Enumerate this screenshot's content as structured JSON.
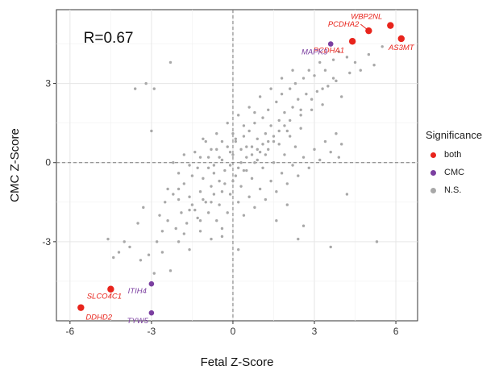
{
  "chart_data": {
    "type": "scatter",
    "xlabel": "Fetal Z-Score",
    "ylabel": "CMC Z-Score",
    "xlim": [
      -6.5,
      6.8
    ],
    "ylim": [
      -6.0,
      5.8
    ],
    "xticks": [
      -6,
      -3,
      0,
      3,
      6
    ],
    "yticks": [
      -3,
      0,
      3
    ],
    "grid": true,
    "reference_lines": {
      "x": 0,
      "y": 0
    },
    "annotation": "R=0.67",
    "legend": {
      "title": "Significance",
      "placement": "right",
      "entries": [
        {
          "label": "both",
          "color": "#e8241c"
        },
        {
          "label": "CMC",
          "color": "#7b3fa0"
        },
        {
          "label": "N.S.",
          "color": "#a8a8a8"
        }
      ]
    },
    "series": [
      {
        "name": "both",
        "color": "#e8241c",
        "points": [
          {
            "x": 5.8,
            "y": 5.2,
            "label": "WBP2NL"
          },
          {
            "x": 5.0,
            "y": 5.0,
            "label": "PCDHA2"
          },
          {
            "x": 4.4,
            "y": 4.6,
            "label": "PCDHA1"
          },
          {
            "x": 6.2,
            "y": 4.7,
            "label": "AS3MT"
          },
          {
            "x": -4.5,
            "y": -4.8,
            "label": "SLCO4C1"
          },
          {
            "x": -5.6,
            "y": -5.5,
            "label": "DDHD2"
          }
        ]
      },
      {
        "name": "CMC",
        "color": "#7b3fa0",
        "points": [
          {
            "x": 3.6,
            "y": 4.5,
            "label": "MAPK3"
          },
          {
            "x": -3.0,
            "y": -4.6,
            "label": "ITIH4"
          },
          {
            "x": -3.0,
            "y": -5.7,
            "label": "TYW5"
          }
        ]
      },
      {
        "name": "N.S.",
        "color": "#a8a8a8",
        "points": [
          [
            -2.3,
            3.8
          ],
          [
            -3.6,
            2.8
          ],
          [
            -3.2,
            3.0
          ],
          [
            -2.9,
            2.8
          ],
          [
            -3.0,
            1.2
          ],
          [
            -3.3,
            -1.7
          ],
          [
            -2.7,
            -2.0
          ],
          [
            -2.5,
            -1.5
          ],
          [
            -2.2,
            -1.2
          ],
          [
            -2.0,
            -1.0
          ],
          [
            -1.8,
            -0.8
          ],
          [
            -1.6,
            -1.3
          ],
          [
            -1.5,
            -0.5
          ],
          [
            -1.4,
            -1.8
          ],
          [
            -1.3,
            -0.2
          ],
          [
            -1.2,
            -1.1
          ],
          [
            -1.1,
            -0.6
          ],
          [
            -1.0,
            -1.5
          ],
          [
            -0.9,
            0.2
          ],
          [
            -0.8,
            -0.9
          ],
          [
            -0.7,
            -0.4
          ],
          [
            -0.6,
            0.5
          ],
          [
            -0.5,
            -0.7
          ],
          [
            -0.4,
            0.1
          ],
          [
            -0.3,
            -0.3
          ],
          [
            -0.2,
            0.6
          ],
          [
            -0.1,
            -0.1
          ],
          [
            0.0,
            0.3
          ],
          [
            0.1,
            0.8
          ],
          [
            0.2,
            -0.2
          ],
          [
            0.3,
            0.5
          ],
          [
            0.4,
            1.0
          ],
          [
            0.5,
            0.2
          ],
          [
            0.6,
            1.2
          ],
          [
            0.7,
            0.6
          ],
          [
            0.8,
            1.5
          ],
          [
            0.9,
            0.9
          ],
          [
            1.0,
            0.4
          ],
          [
            1.1,
            1.7
          ],
          [
            1.2,
            1.1
          ],
          [
            1.3,
            2.0
          ],
          [
            1.4,
            1.4
          ],
          [
            1.5,
            0.8
          ],
          [
            1.6,
            2.3
          ],
          [
            1.7,
            1.6
          ],
          [
            1.8,
            2.6
          ],
          [
            1.9,
            1.9
          ],
          [
            2.0,
            1.2
          ],
          [
            2.1,
            2.8
          ],
          [
            2.2,
            2.1
          ],
          [
            2.3,
            3.0
          ],
          [
            2.4,
            2.4
          ],
          [
            2.5,
            1.8
          ],
          [
            2.6,
            3.2
          ],
          [
            2.7,
            2.6
          ],
          [
            2.8,
            3.5
          ],
          [
            2.9,
            2.0
          ],
          [
            3.0,
            3.3
          ],
          [
            3.1,
            2.7
          ],
          [
            3.2,
            3.8
          ],
          [
            3.3,
            2.2
          ],
          [
            3.4,
            3.5
          ],
          [
            3.5,
            2.9
          ],
          [
            3.7,
            3.9
          ],
          [
            3.8,
            3.1
          ],
          [
            3.9,
            4.2
          ],
          [
            4.0,
            2.5
          ],
          [
            4.2,
            4.0
          ],
          [
            4.3,
            3.4
          ],
          [
            4.5,
            3.8
          ],
          [
            4.7,
            3.5
          ],
          [
            5.0,
            4.1
          ],
          [
            5.2,
            3.7
          ],
          [
            5.5,
            4.4
          ],
          [
            -2.6,
            -2.6
          ],
          [
            -2.4,
            -2.2
          ],
          [
            -2.1,
            -2.5
          ],
          [
            -1.9,
            -1.9
          ],
          [
            -1.7,
            -2.3
          ],
          [
            -1.5,
            -1.6
          ],
          [
            -1.3,
            -2.1
          ],
          [
            -1.1,
            -1.4
          ],
          [
            -0.9,
            -1.9
          ],
          [
            -0.7,
            -1.2
          ],
          [
            -0.5,
            -1.6
          ],
          [
            -0.3,
            -0.8
          ],
          [
            -0.1,
            -1.2
          ],
          [
            0.1,
            -0.5
          ],
          [
            0.3,
            -0.9
          ],
          [
            0.5,
            -0.3
          ],
          [
            0.7,
            -0.6
          ],
          [
            0.9,
            0.1
          ],
          [
            1.1,
            -0.2
          ],
          [
            1.3,
            0.5
          ],
          [
            1.5,
            0.0
          ],
          [
            1.7,
            0.7
          ],
          [
            1.9,
            0.3
          ],
          [
            2.1,
            1.0
          ],
          [
            2.3,
            0.6
          ],
          [
            2.5,
            1.3
          ],
          [
            -2.8,
            -3.0
          ],
          [
            -3.5,
            -2.3
          ],
          [
            -3.8,
            -3.2
          ],
          [
            -4.2,
            -3.4
          ],
          [
            -4.4,
            -3.6
          ],
          [
            -4.6,
            -2.9
          ],
          [
            -4.0,
            -3.0
          ],
          [
            -3.4,
            -3.7
          ],
          [
            -3.1,
            -3.5
          ],
          [
            -2.9,
            -4.2
          ],
          [
            -2.6,
            -3.4
          ],
          [
            -2.3,
            -4.1
          ],
          [
            -2.0,
            -3.0
          ],
          [
            -1.8,
            -2.7
          ],
          [
            -1.6,
            -3.3
          ],
          [
            -1.2,
            -2.6
          ],
          [
            -0.8,
            -2.9
          ],
          [
            -0.6,
            -2.2
          ],
          [
            -0.4,
            -2.5
          ],
          [
            -0.2,
            -1.9
          ],
          [
            0.2,
            -1.5
          ],
          [
            0.4,
            -2.0
          ],
          [
            0.6,
            -1.3
          ],
          [
            0.8,
            -1.7
          ],
          [
            1.0,
            -1.0
          ],
          [
            1.2,
            -1.4
          ],
          [
            1.4,
            -0.7
          ],
          [
            1.6,
            -1.1
          ],
          [
            1.8,
            -0.4
          ],
          [
            2.0,
            -0.8
          ],
          [
            2.2,
            -0.1
          ],
          [
            2.4,
            -0.5
          ],
          [
            2.6,
            0.2
          ],
          [
            2.8,
            -0.2
          ],
          [
            3.0,
            0.5
          ],
          [
            3.2,
            0.1
          ],
          [
            3.4,
            0.8
          ],
          [
            3.6,
            0.4
          ],
          [
            3.8,
            1.1
          ],
          [
            4.0,
            0.7
          ],
          [
            -1.4,
            0.4
          ],
          [
            -1.0,
            0.8
          ],
          [
            -0.6,
            1.1
          ],
          [
            -0.2,
            1.5
          ],
          [
            0.2,
            1.8
          ],
          [
            0.6,
            2.1
          ],
          [
            1.0,
            2.5
          ],
          [
            1.4,
            2.8
          ],
          [
            1.8,
            3.2
          ],
          [
            2.2,
            3.5
          ],
          [
            -2.2,
            0.0
          ],
          [
            -1.8,
            0.3
          ],
          [
            -2.0,
            -0.4
          ],
          [
            -1.6,
            -0.1
          ],
          [
            -1.2,
            0.2
          ],
          [
            -0.8,
            0.5
          ],
          [
            -0.4,
            0.8
          ],
          [
            0.0,
            1.1
          ],
          [
            0.4,
            1.4
          ],
          [
            0.8,
            1.9
          ],
          [
            0.2,
            -3.3
          ],
          [
            -0.4,
            -2.8
          ],
          [
            1.6,
            -2.2
          ],
          [
            2.4,
            -2.9
          ],
          [
            2.6,
            -2.4
          ],
          [
            3.6,
            -3.2
          ],
          [
            4.2,
            -1.2
          ],
          [
            5.3,
            -3.0
          ],
          [
            3.9,
            0.2
          ],
          [
            2.0,
            -1.6
          ],
          [
            -0.9,
            -0.2
          ],
          [
            -0.5,
            0.2
          ],
          [
            -0.1,
            0.4
          ],
          [
            0.3,
            0.0
          ],
          [
            0.7,
            0.3
          ],
          [
            1.1,
            0.7
          ],
          [
            1.5,
            1.0
          ],
          [
            1.9,
            1.4
          ],
          [
            -1.1,
            0.9
          ],
          [
            -0.7,
            -0.1
          ],
          [
            0.1,
            0.9
          ],
          [
            0.5,
            0.6
          ],
          [
            0.9,
            0.5
          ],
          [
            1.3,
            0.8
          ],
          [
            1.7,
            1.2
          ],
          [
            2.1,
            1.6
          ],
          [
            2.5,
            2.0
          ],
          [
            2.9,
            2.4
          ],
          [
            3.3,
            2.8
          ],
          [
            3.7,
            3.2
          ],
          [
            -2.4,
            -1.0
          ],
          [
            -2.0,
            -1.4
          ],
          [
            -1.6,
            -1.8
          ],
          [
            -1.2,
            -2.2
          ],
          [
            -0.8,
            -1.5
          ],
          [
            -0.4,
            -1.1
          ],
          [
            0.0,
            -0.7
          ],
          [
            0.4,
            -0.3
          ],
          [
            0.8,
            0.0
          ],
          [
            1.2,
            0.3
          ]
        ]
      }
    ]
  }
}
